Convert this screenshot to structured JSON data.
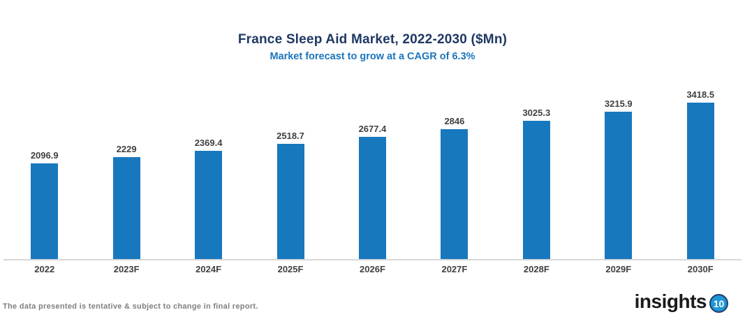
{
  "title": "France Sleep Aid Market, 2022-2030 ($Mn)",
  "subtitle": "Market forecast to grow at a CAGR of 6.3%",
  "chart_data": {
    "type": "bar",
    "title": "France Sleep Aid Market, 2022-2030 ($Mn)",
    "subtitle": "Market forecast to grow at a CAGR of 6.3%",
    "categories": [
      "2022",
      "2023F",
      "2024F",
      "2025F",
      "2026F",
      "2027F",
      "2028F",
      "2029F",
      "2030F"
    ],
    "values": [
      2096.9,
      2229,
      2369.4,
      2518.7,
      2677.4,
      2846,
      3025.3,
      3215.9,
      3418.5
    ],
    "value_labels": [
      "2096.9",
      "2229",
      "2369.4",
      "2518.7",
      "2677.4",
      "2846",
      "3025.3",
      "3215.9",
      "3418.5"
    ],
    "xlabel": "",
    "ylabel": "",
    "ylim": [
      0,
      4000
    ],
    "grid": false,
    "legend": "none",
    "bar_color": "#1878BE"
  },
  "colors": {
    "title": "#1F3864",
    "subtitle": "#1B75BC",
    "bar": "#1878BE",
    "axis_line": "#D8D8D8",
    "data_label": "#404040",
    "footer": "#7F7F7F",
    "logo_badge_fill": "#2095D3",
    "logo_badge_ring": "#1C3E6D"
  },
  "footer": {
    "disclaimer": "The data presented is tentative & subject to change in final report."
  },
  "logo": {
    "text": "insights",
    "badge": "10"
  }
}
